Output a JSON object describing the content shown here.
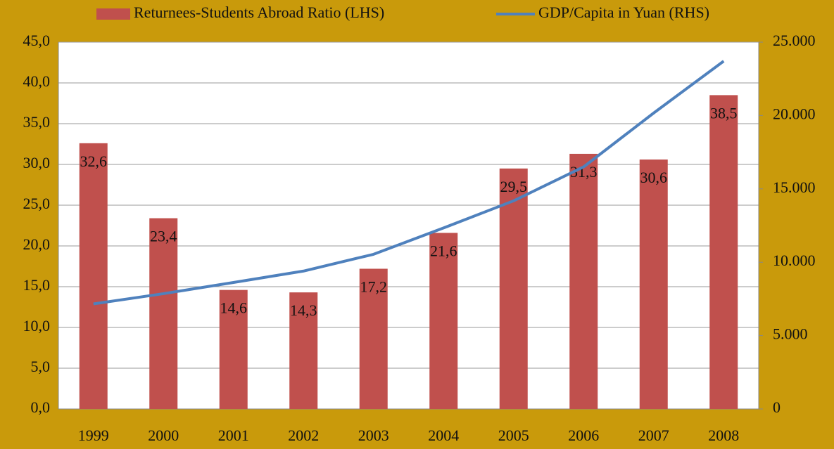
{
  "chart_data": {
    "type": "bar",
    "categories": [
      "1999",
      "2000",
      "2001",
      "2002",
      "2003",
      "2004",
      "2005",
      "2006",
      "2007",
      "2008"
    ],
    "series": [
      {
        "name": "Returnees-Students Abroad Ratio (LHS)",
        "color": "#c0504d",
        "type": "bar",
        "values": [
          32.6,
          23.4,
          14.6,
          14.3,
          17.2,
          21.6,
          29.5,
          31.3,
          30.6,
          38.5
        ],
        "value_labels": [
          "32,6",
          "23,4",
          "14,6",
          "14,3",
          "17,2",
          "21,6",
          "29,5",
          "31,3",
          "30,6",
          "38,5"
        ]
      },
      {
        "name": "GDP/Capita in Yuan (RHS)",
        "color": "#4f81bd",
        "type": "line",
        "axis": "y2",
        "values": [
          7159,
          7858,
          8622,
          9398,
          10542,
          12336,
          14185,
          16500,
          20169,
          23708
        ]
      }
    ],
    "ylim": [
      0,
      45
    ],
    "yticks": [
      {
        "value": 0,
        "label": "0,0"
      },
      {
        "value": 5,
        "label": "5,0"
      },
      {
        "value": 10,
        "label": "10,0"
      },
      {
        "value": 15,
        "label": "15,0"
      },
      {
        "value": 20,
        "label": "20,0"
      },
      {
        "value": 25,
        "label": "25,0"
      },
      {
        "value": 30,
        "label": "30,0"
      },
      {
        "value": 35,
        "label": "35,0"
      },
      {
        "value": 40,
        "label": "40,0"
      },
      {
        "value": 45,
        "label": "45,0"
      }
    ],
    "y2lim": [
      0,
      25000
    ],
    "y2ticks": [
      0,
      {
        "value": 5000,
        "label": "5.000"
      },
      {
        "value": 10000,
        "label": "10.000"
      },
      {
        "value": 15000,
        "label": "15.000"
      },
      {
        "value": 20000,
        "label": "20.000"
      },
      {
        "value": 25000,
        "label": "25.000"
      }
    ],
    "grid": true,
    "legend": "top"
  }
}
